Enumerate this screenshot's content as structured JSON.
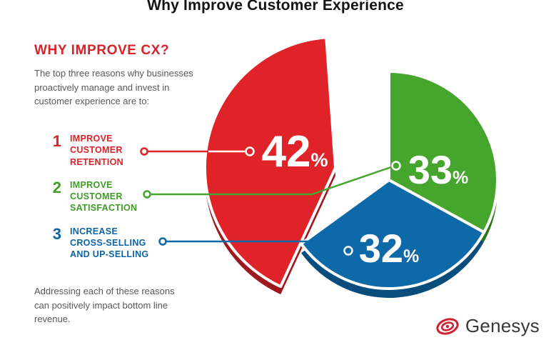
{
  "title": "Why Improve Customer Experience",
  "colors": {
    "red": "#e02229",
    "red_shade": "#9e181d",
    "green": "#45a52c",
    "green_shade": "#2c7619",
    "blue": "#0e69a8",
    "blue_shade": "#084d7c",
    "text_gray": "#58595b",
    "heading_red": "#d8232a"
  },
  "panel": {
    "heading": "WHY IMPROVE CX?",
    "intro": "The top three reasons why businesses proactively manage and invest in customer experience are to:",
    "reasons": [
      {
        "number": "1",
        "lines": [
          "IMPROVE",
          "CUSTOMER",
          "RETENTION"
        ]
      },
      {
        "number": "2",
        "lines": [
          "IMPROVE",
          "CUSTOMER",
          "SATISFACTION"
        ]
      },
      {
        "number": "3",
        "lines": [
          "INCREASE",
          "CROSS-SELLING",
          "AND UP-SELLING"
        ]
      }
    ],
    "footer": "Addressing each of these reasons can positively impact bottom line revenue."
  },
  "chart_data": {
    "type": "pie",
    "title": "Why Improve Customer Experience",
    "slices": [
      {
        "label": "Improve customer retention",
        "value": 42,
        "display": "42",
        "unit": "%",
        "color": "#e02229",
        "shade": "#9e181d"
      },
      {
        "label": "Improve customer satisfaction",
        "value": 33,
        "display": "33",
        "unit": "%",
        "color": "#45a52c",
        "shade": "#2c7619"
      },
      {
        "label": "Increase cross-selling and up-selling",
        "value": 32,
        "display": "32",
        "unit": "%",
        "color": "#0e69a8",
        "shade": "#084d7c"
      }
    ],
    "value_labels_color": "#ffffff",
    "legend_position": "left",
    "exploded_slice": "Improve customer retention"
  },
  "logo": {
    "text": "Genesys"
  }
}
